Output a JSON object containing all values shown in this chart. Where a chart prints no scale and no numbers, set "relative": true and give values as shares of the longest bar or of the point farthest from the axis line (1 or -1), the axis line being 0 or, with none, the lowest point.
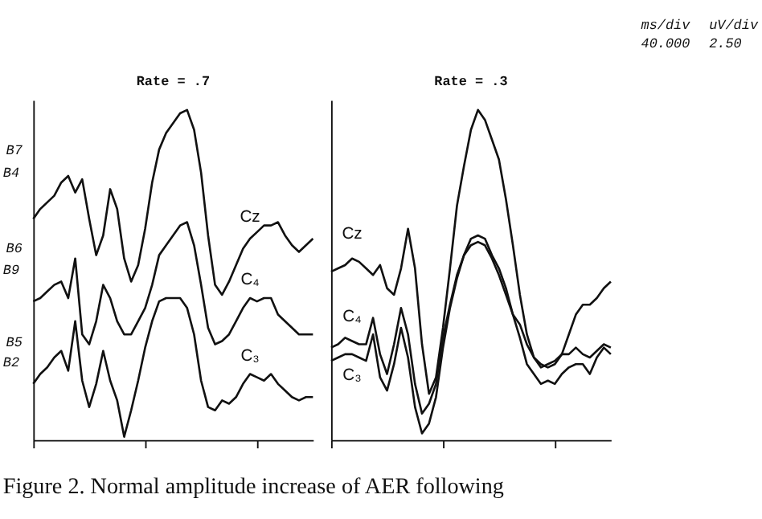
{
  "chart_data": [
    {
      "type": "line",
      "title": "Rate = .7",
      "relative": true,
      "grid": false,
      "marker": "none",
      "line_style": "solid",
      "categories": [
        null,
        null,
        null,
        null,
        null,
        null,
        null,
        null,
        null,
        null,
        null,
        null,
        null,
        null,
        null,
        null,
        null,
        null,
        null,
        null,
        null,
        null,
        null,
        null,
        null,
        null,
        null,
        null,
        null,
        null,
        null,
        null,
        null,
        null,
        null,
        null,
        null,
        null,
        null,
        null,
        null
      ],
      "series": [
        {
          "name": "Cz",
          "color": "#111111",
          "values": [
            0.67,
            0.7,
            0.72,
            0.74,
            0.78,
            0.8,
            0.75,
            0.79,
            0.67,
            0.56,
            0.62,
            0.76,
            0.7,
            0.55,
            0.48,
            0.53,
            0.64,
            0.78,
            0.88,
            0.93,
            0.96,
            0.99,
            1.0,
            0.94,
            0.81,
            0.62,
            0.47,
            0.44,
            0.48,
            0.53,
            0.58,
            0.61,
            0.63,
            0.65,
            0.65,
            0.66,
            0.62,
            0.59,
            0.57,
            0.59,
            0.61
          ]
        },
        {
          "name": "C₄",
          "color": "#111111",
          "values": [
            0.42,
            0.43,
            0.45,
            0.47,
            0.48,
            0.43,
            0.55,
            0.32,
            0.29,
            0.36,
            0.47,
            0.43,
            0.36,
            0.32,
            0.32,
            0.36,
            0.4,
            0.47,
            0.56,
            0.59,
            0.62,
            0.65,
            0.66,
            0.59,
            0.47,
            0.34,
            0.29,
            0.3,
            0.32,
            0.36,
            0.4,
            0.43,
            0.42,
            0.43,
            0.43,
            0.38,
            0.36,
            0.34,
            0.32,
            0.32,
            0.32
          ]
        },
        {
          "name": "C₃",
          "color": "#111111",
          "values": [
            0.17,
            0.2,
            0.22,
            0.25,
            0.27,
            0.21,
            0.36,
            0.18,
            0.1,
            0.17,
            0.27,
            0.18,
            0.12,
            0.01,
            0.09,
            0.18,
            0.28,
            0.36,
            0.42,
            0.43,
            0.43,
            0.43,
            0.4,
            0.32,
            0.18,
            0.1,
            0.09,
            0.12,
            0.11,
            0.13,
            0.17,
            0.2,
            0.19,
            0.18,
            0.2,
            0.17,
            0.15,
            0.13,
            0.12,
            0.13,
            0.13
          ]
        }
      ],
      "annotations": [
        "B7",
        "B4",
        "B6",
        "B9",
        "B5",
        "B2",
        "Figure 2. Normal amplitude increase of AER following"
      ]
    },
    {
      "type": "line",
      "title": "Rate = .3",
      "relative": true,
      "grid": false,
      "marker": "none",
      "line_style": "solid",
      "categories": [
        null,
        null,
        null,
        null,
        null,
        null,
        null,
        null,
        null,
        null,
        null,
        null,
        null,
        null,
        null,
        null,
        null,
        null,
        null,
        null,
        null,
        null,
        null,
        null,
        null,
        null,
        null,
        null,
        null,
        null,
        null,
        null,
        null,
        null,
        null,
        null,
        null,
        null,
        null,
        null,
        null
      ],
      "series": [
        {
          "name": "Cz",
          "color": "#111111",
          "values": [
            0.51,
            0.52,
            0.53,
            0.55,
            0.54,
            0.52,
            0.5,
            0.53,
            0.46,
            0.44,
            0.52,
            0.64,
            0.52,
            0.29,
            0.14,
            0.19,
            0.34,
            0.52,
            0.71,
            0.83,
            0.94,
            1.0,
            0.97,
            0.91,
            0.85,
            0.73,
            0.59,
            0.44,
            0.32,
            0.25,
            0.23,
            0.22,
            0.23,
            0.26,
            0.32,
            0.38,
            0.41,
            0.41,
            0.43,
            0.46,
            0.48
          ]
        },
        {
          "name": "C₄",
          "color": "#111111",
          "values": [
            0.28,
            0.29,
            0.31,
            0.3,
            0.29,
            0.29,
            0.37,
            0.26,
            0.2,
            0.29,
            0.4,
            0.32,
            0.17,
            0.08,
            0.11,
            0.17,
            0.31,
            0.41,
            0.5,
            0.56,
            0.61,
            0.62,
            0.61,
            0.56,
            0.52,
            0.46,
            0.38,
            0.35,
            0.29,
            0.25,
            0.22,
            0.23,
            0.24,
            0.26,
            0.26,
            0.28,
            0.26,
            0.25,
            0.27,
            0.29,
            0.28
          ]
        },
        {
          "name": "C₃",
          "color": "#111111",
          "values": [
            0.24,
            0.25,
            0.26,
            0.26,
            0.25,
            0.24,
            0.32,
            0.19,
            0.15,
            0.23,
            0.34,
            0.25,
            0.1,
            0.02,
            0.05,
            0.13,
            0.28,
            0.4,
            0.49,
            0.56,
            0.59,
            0.6,
            0.59,
            0.55,
            0.5,
            0.44,
            0.38,
            0.31,
            0.23,
            0.2,
            0.17,
            0.18,
            0.17,
            0.2,
            0.22,
            0.23,
            0.23,
            0.2,
            0.25,
            0.28,
            0.26
          ]
        }
      ],
      "annotations": [
        "ms/div",
        "40.000",
        "uV/div",
        "2.50"
      ]
    }
  ]
}
